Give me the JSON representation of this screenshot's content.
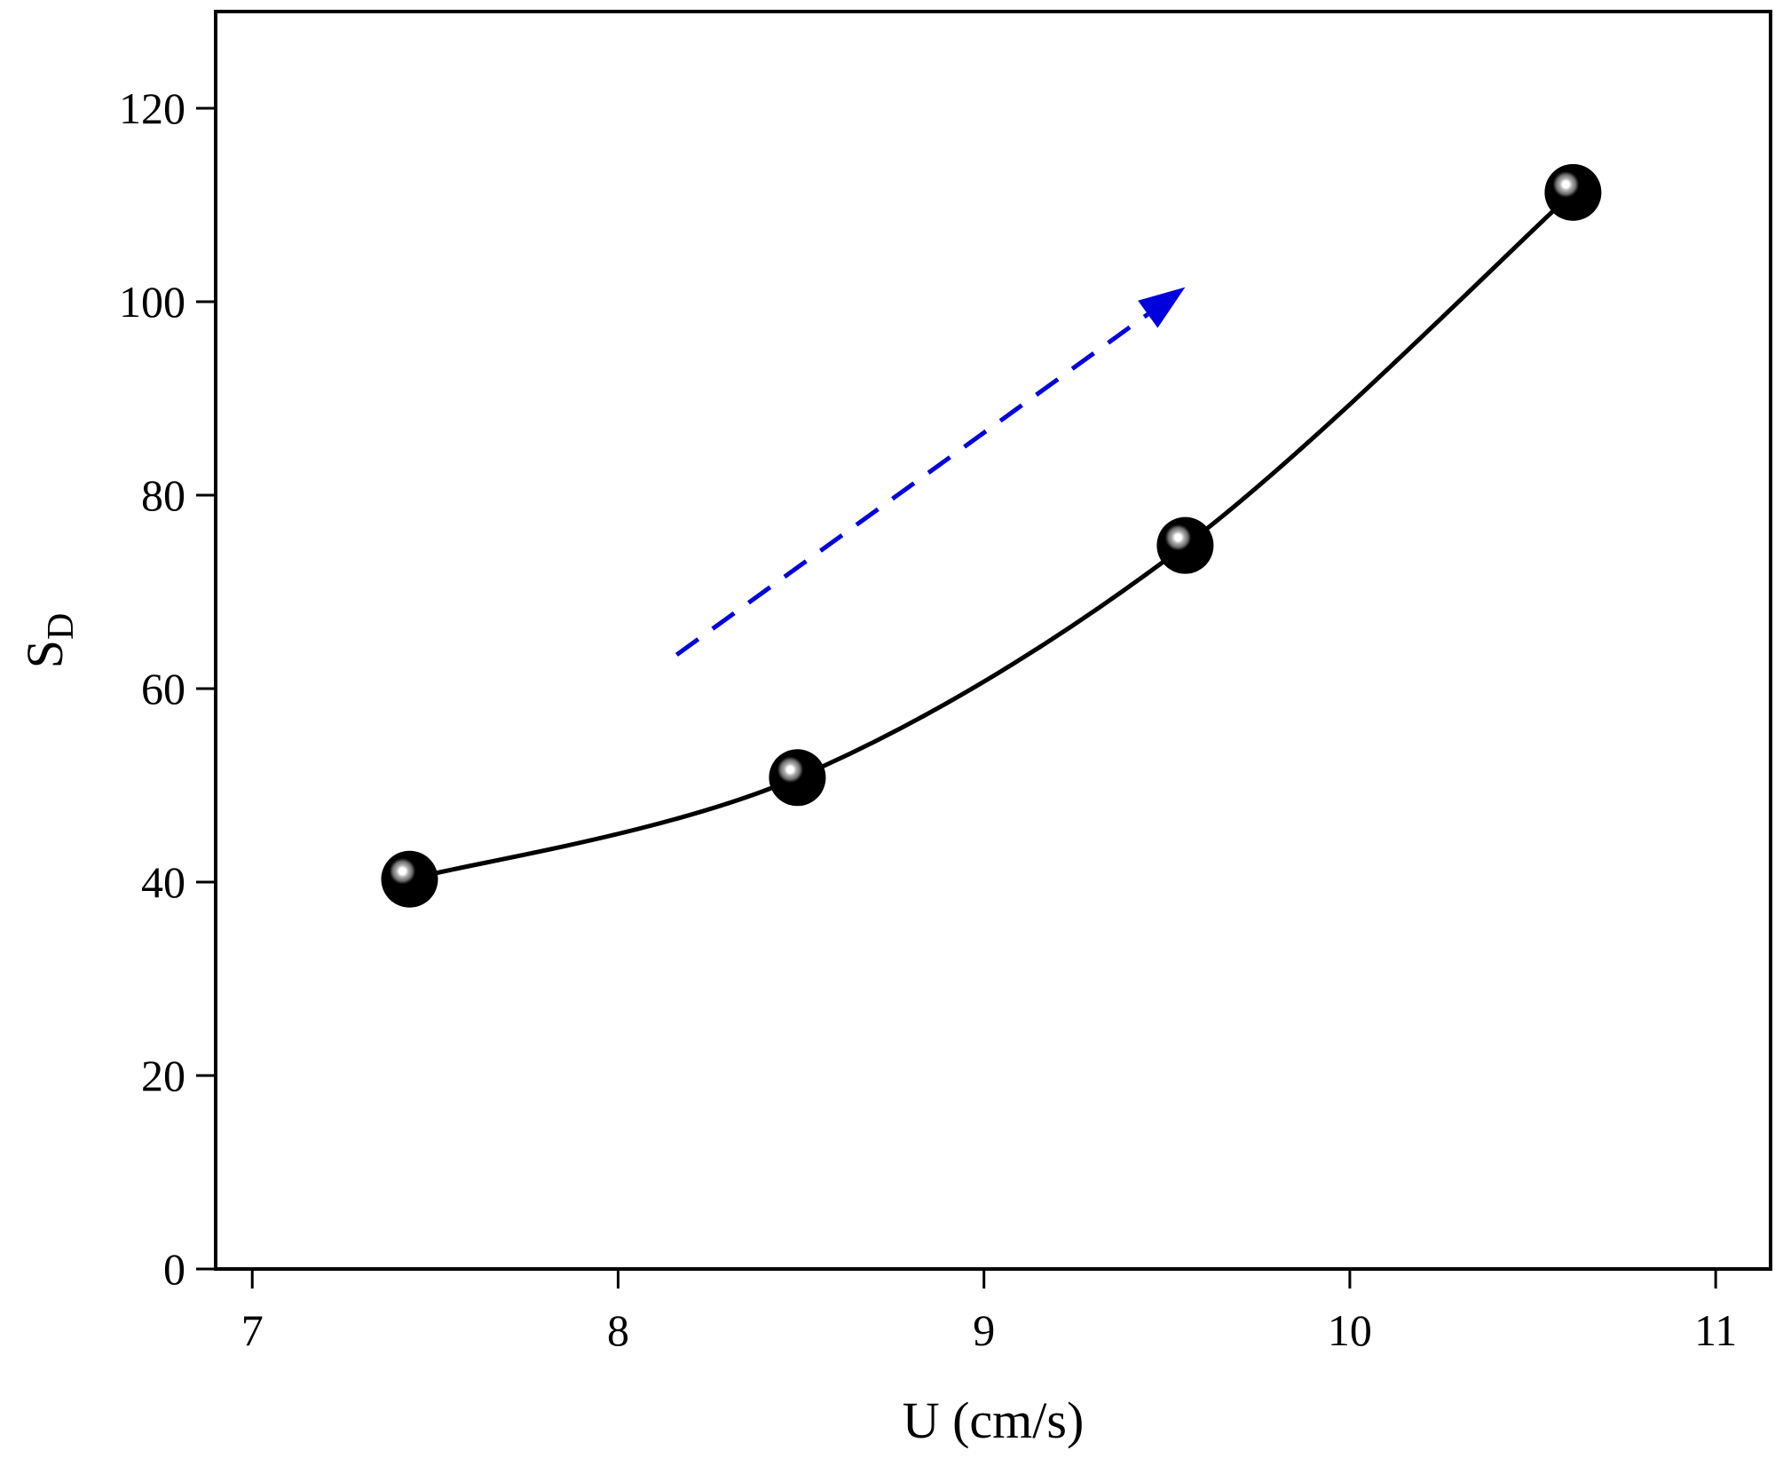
{
  "chart_data": {
    "type": "line",
    "title": "",
    "xlabel": "U (cm/s)",
    "ylabel": "S",
    "ylabel_subscript": "D",
    "xlim": [
      6.9,
      11.15
    ],
    "ylim": [
      0,
      130
    ],
    "xticks": [
      7,
      8,
      9,
      10,
      11
    ],
    "yticks": [
      0,
      20,
      40,
      60,
      80,
      100,
      120
    ],
    "series": [
      {
        "name": "S_D",
        "x": [
          7.43,
          8.49,
          9.55,
          10.61
        ],
        "y": [
          40.3,
          50.8,
          74.8,
          111.3
        ],
        "line_color": "#000000",
        "marker_color": "#000000"
      }
    ],
    "annotations": [
      {
        "type": "dashed-arrow",
        "from": [
          8.16,
          63.5
        ],
        "to": [
          9.55,
          101.5
        ],
        "color": "#0000dd"
      }
    ],
    "grid": false
  }
}
